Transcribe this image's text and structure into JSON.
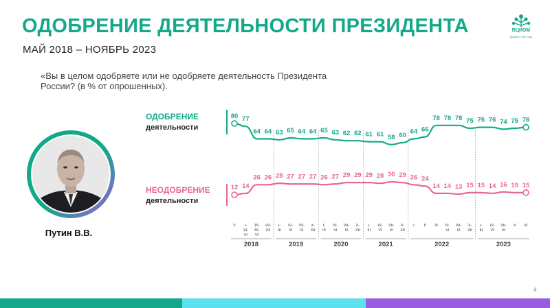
{
  "header": {
    "title": "ОДОБРЕНИЕ ДЕЯТЕЛЬНОСТИ ПРЕЗИДЕНТА",
    "subtitle": "МАЙ 2018 – НОЯБРЬ 2023",
    "question": "«Вы в целом одобряете или не одобряете деятельность Президента России? (в % от опрошенных)."
  },
  "logo": {
    "name": "ВЦИОМ",
    "tagline": "Думаем с 1987 года",
    "icon": "tree-logo-icon"
  },
  "person": {
    "name": "Путин В.В.",
    "icon": "portrait-photo"
  },
  "legend": {
    "approval_line1": "ОДОБРЕНИЕ",
    "approval_line2": "деятельности",
    "disapproval_line1": "НЕОДОБРЕНИЕ",
    "disapproval_line2": "деятельности"
  },
  "page_number": "4",
  "colors": {
    "green": "#13a988",
    "pink": "#e8688c",
    "teal": "#13a988",
    "cyan": "#5ce1ee",
    "purple": "#9a5de0"
  },
  "chart_data": {
    "type": "line",
    "x": [
      "V",
      "I-14. VI",
      "15-30. VI",
      "VII-XII",
      "I-III",
      "IV-VI",
      "VII-IX",
      "X-XII",
      "I-III",
      "IV-VI",
      "VII-IX",
      "X-XII",
      "I-III",
      "IV-VI",
      "VII-IX",
      "X-XII",
      "I",
      "II",
      "III",
      "IV-VI",
      "VII-IX",
      "X-XII",
      "I-III",
      "IV-VI",
      "VII-IX",
      "X",
      "XI"
    ],
    "years": [
      {
        "label": "2018",
        "start": 0,
        "end": 3
      },
      {
        "label": "2019",
        "start": 4,
        "end": 7
      },
      {
        "label": "2020",
        "start": 8,
        "end": 11
      },
      {
        "label": "2021",
        "start": 12,
        "end": 15
      },
      {
        "label": "2022",
        "start": 16,
        "end": 21
      },
      {
        "label": "2023",
        "start": 22,
        "end": 26
      }
    ],
    "series": [
      {
        "name": "ОДОБРЕНИЕ деятельности",
        "color": "#13a988",
        "values": [
          80,
          77,
          64,
          64,
          63,
          65,
          64,
          64,
          65,
          63,
          62,
          62,
          61,
          61,
          58,
          60,
          64,
          66,
          78,
          78,
          78,
          75,
          76,
          76,
          74,
          75,
          76
        ]
      },
      {
        "name": "НЕОДОБРЕНИЕ деятельности",
        "color": "#e8688c",
        "values": [
          12,
          14,
          26,
          26,
          28,
          27,
          27,
          27,
          26,
          27,
          29,
          29,
          29,
          28,
          30,
          29,
          26,
          24,
          14,
          14,
          13,
          15,
          15,
          14,
          16,
          15,
          15
        ]
      }
    ],
    "grid": false
  }
}
